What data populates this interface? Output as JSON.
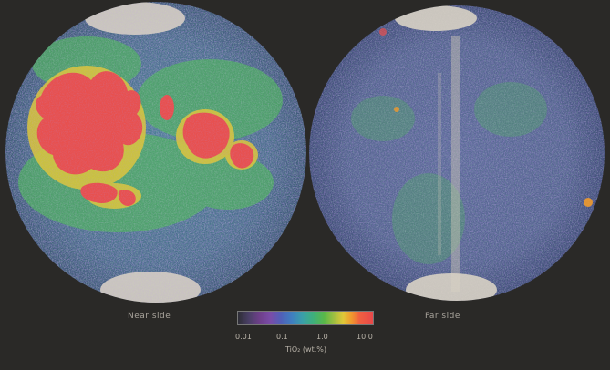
{
  "map": {
    "near_label": "Near side",
    "far_label": "Far side",
    "legend": {
      "ticks": [
        "0.01",
        "0.1",
        "1.0",
        "10.0"
      ],
      "title": "TiO₂ (wt.%)"
    },
    "colors": {
      "background": "#2a2927",
      "low": "#6e3f8a",
      "mid": "#3aa0a8",
      "green": "#4fb060",
      "high": "#e8484a",
      "polar": "#d8d2c4"
    }
  }
}
